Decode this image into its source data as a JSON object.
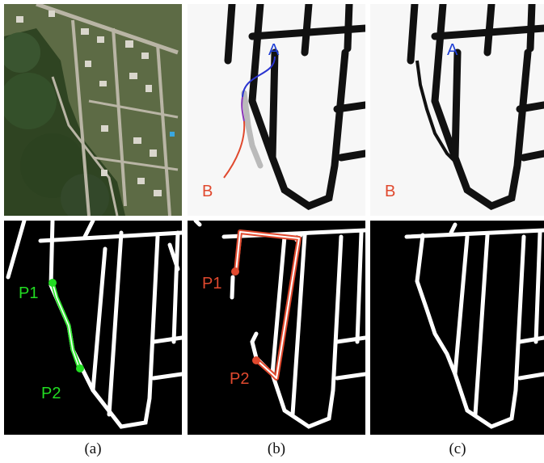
{
  "figure": {
    "captions": [
      "(a)",
      "(b)",
      "(c)"
    ],
    "top_row": {
      "b_labels": {
        "a": "A",
        "b": "B"
      },
      "c_labels": {
        "a": "A",
        "b": "B"
      }
    },
    "bottom_row": {
      "a_labels": {
        "p1": "P1",
        "p2": "P2"
      },
      "b_labels": {
        "p1": "P1",
        "p2": "P2"
      }
    },
    "colors": {
      "blue_label": "#1f3fd6",
      "red_label": "#e0492e",
      "green_label": "#22dd22",
      "road_dark": "#111111",
      "mask_bg": "#000000",
      "mask_road": "#ffffff"
    }
  }
}
